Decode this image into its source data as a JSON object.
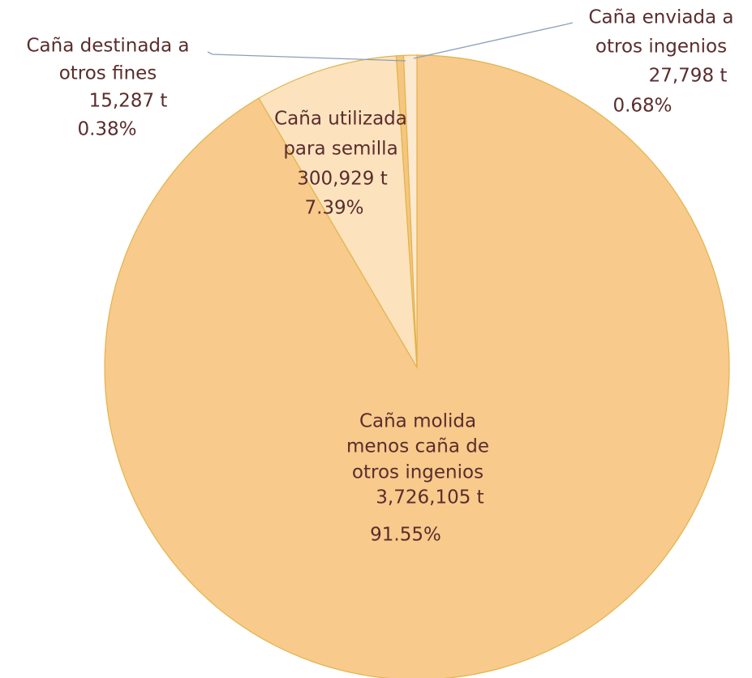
{
  "chart_data": {
    "type": "pie",
    "categories": [
      [
        "Caña molida",
        "menos caña de",
        "otros ingenios"
      ],
      [
        "Caña utilizada",
        "para semilla"
      ],
      [
        "Caña destinada a",
        "otros fines"
      ],
      [
        "Caña enviada a",
        "otros ingenios"
      ]
    ],
    "values": [
      3726105,
      300929,
      15287,
      27798
    ],
    "value_labels": [
      "3,726,105 t",
      "300,929 t",
      "15,287 t",
      "27,798 t"
    ],
    "percents": [
      91.55,
      7.39,
      0.38,
      0.68
    ],
    "percent_labels": [
      "91.55%",
      "7.39%",
      "0.38%",
      "0.68%"
    ],
    "colors": [
      "#f8ca8c",
      "#fce3be",
      "#f6c680",
      "#fde9cf"
    ]
  }
}
